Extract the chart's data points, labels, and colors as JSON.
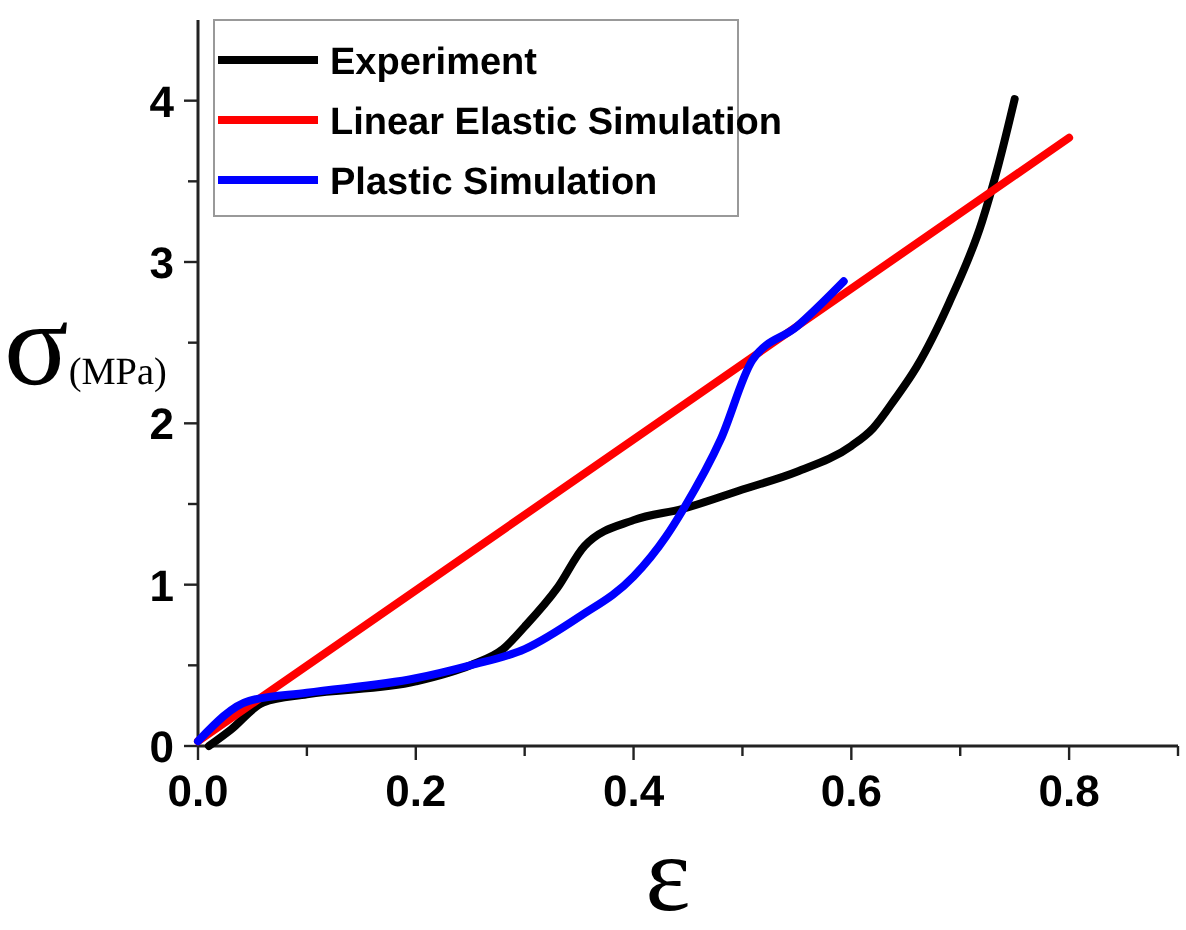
{
  "chart_data": {
    "type": "line",
    "xlabel": "ε",
    "ylabel": "σ$_{(MPa)}$",
    "xlim": [
      0,
      0.9
    ],
    "ylim": [
      0,
      4.5
    ],
    "xticks": [
      {
        "value": 0,
        "label": "0.0"
      },
      {
        "value": 0.1,
        "label": null
      },
      {
        "value": 0.2,
        "label": "0.2"
      },
      {
        "value": 0.3,
        "label": null
      },
      {
        "value": 0.4,
        "label": "0.4"
      },
      {
        "value": 0.5,
        "label": null
      },
      {
        "value": 0.6,
        "label": "0.6"
      },
      {
        "value": 0.7,
        "label": null
      },
      {
        "value": 0.8,
        "label": "0.8"
      },
      {
        "value": 0.9,
        "label": null
      }
    ],
    "yticks": [
      0,
      {
        "value": 0.5,
        "label": null
      },
      1,
      {
        "value": 1.5,
        "label": null
      },
      2,
      {
        "value": 2.5,
        "label": null
      },
      3,
      {
        "value": 3.5,
        "label": null
      },
      4
    ],
    "legend": "top left",
    "grid": false,
    "marker": "none",
    "line_style": "solid",
    "series": [
      {
        "name": "Experiment",
        "color": "#000000",
        "x": [
          0.01,
          0.03,
          0.06,
          0.1,
          0.2,
          0.25,
          0.28,
          0.3,
          0.33,
          0.355,
          0.4,
          0.445,
          0.5,
          0.55,
          0.6,
          0.62,
          0.64,
          0.66,
          0.69,
          0.72,
          0.735,
          0.75
        ],
        "values": [
          0,
          0.1,
          0.27,
          0.32,
          0.4,
          0.5,
          0.6,
          0.74,
          0.98,
          1.24,
          1.4,
          1.47,
          1.59,
          1.7,
          1.86,
          1.97,
          2.15,
          2.35,
          2.75,
          3.25,
          3.6,
          4.01
        ]
      },
      {
        "name": "Linear Elastic Simulation",
        "color": "#ff0000",
        "x": [
          0,
          0.8
        ],
        "values": [
          0.03,
          3.77
        ]
      },
      {
        "name": "Plastic Simulation",
        "color": "#0000ff",
        "x": [
          0,
          0.047,
          0.1,
          0.2,
          0.25,
          0.3,
          0.35,
          0.4,
          0.43,
          0.445,
          0.48,
          0.509,
          0.55,
          0.593
        ],
        "values": [
          0.03,
          0.28,
          0.33,
          0.42,
          0.5,
          0.6,
          0.8,
          1.05,
          1.3,
          1.46,
          1.9,
          2.39,
          2.6,
          2.88
        ]
      }
    ]
  }
}
